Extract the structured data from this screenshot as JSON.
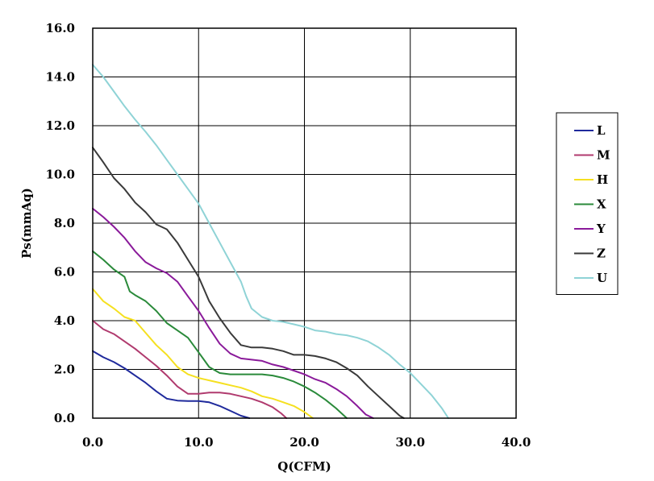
{
  "chart_data": {
    "type": "line",
    "xlabel": "Q(CFM)",
    "ylabel": "Ps(mmAq)",
    "xlim": [
      0,
      40
    ],
    "ylim": [
      0,
      16
    ],
    "x_ticks": [
      "0.0",
      "10.0",
      "20.0",
      "30.0",
      "40.0"
    ],
    "y_ticks": [
      "0.0",
      "2.0",
      "4.0",
      "6.0",
      "8.0",
      "10.0",
      "12.0",
      "14.0",
      "16.0"
    ],
    "grid": true,
    "legend_position": "right",
    "series": [
      {
        "name": "L",
        "color": "#1f2a9c",
        "x": [
          0,
          1,
          2,
          3,
          4,
          5,
          6,
          7,
          8,
          9,
          10,
          11,
          12,
          13,
          14,
          14.8
        ],
        "y": [
          2.75,
          2.5,
          2.3,
          2.05,
          1.75,
          1.45,
          1.1,
          0.8,
          0.72,
          0.7,
          0.7,
          0.65,
          0.5,
          0.3,
          0.1,
          0.0
        ]
      },
      {
        "name": "M",
        "color": "#b03a6e",
        "x": [
          0,
          1,
          2,
          3,
          4,
          5,
          6,
          7,
          8,
          9,
          10,
          11,
          12,
          13,
          14,
          15,
          16,
          17,
          17.8,
          18.3
        ],
        "y": [
          4.0,
          3.65,
          3.45,
          3.15,
          2.85,
          2.5,
          2.15,
          1.75,
          1.3,
          1.0,
          1.0,
          1.05,
          1.05,
          1.0,
          0.9,
          0.8,
          0.65,
          0.45,
          0.2,
          0.0
        ]
      },
      {
        "name": "H",
        "color": "#f5e020",
        "x": [
          0,
          1,
          2,
          3,
          4,
          5,
          6,
          7,
          8,
          9,
          10,
          11,
          12,
          13,
          14,
          15,
          16,
          17,
          18,
          19,
          20,
          20.8
        ],
        "y": [
          5.3,
          4.8,
          4.5,
          4.15,
          4.0,
          3.5,
          3.0,
          2.6,
          2.1,
          1.8,
          1.65,
          1.55,
          1.45,
          1.35,
          1.25,
          1.1,
          0.9,
          0.8,
          0.65,
          0.5,
          0.25,
          0.0
        ]
      },
      {
        "name": "X",
        "color": "#2a8a3a",
        "x": [
          0,
          1,
          2,
          3,
          3.5,
          4,
          5,
          6,
          7,
          8,
          9,
          10,
          11,
          12,
          13,
          14,
          15,
          16,
          17,
          18,
          19,
          20,
          21,
          22,
          23,
          24
        ],
        "y": [
          6.85,
          6.5,
          6.1,
          5.8,
          5.2,
          5.05,
          4.8,
          4.4,
          3.9,
          3.6,
          3.3,
          2.7,
          2.1,
          1.85,
          1.8,
          1.8,
          1.8,
          1.8,
          1.75,
          1.65,
          1.5,
          1.3,
          1.05,
          0.75,
          0.4,
          0.0
        ]
      },
      {
        "name": "Y",
        "color": "#8a1a9a",
        "x": [
          0,
          1,
          2,
          3,
          4,
          5,
          6,
          7,
          8,
          9,
          10,
          11,
          12,
          13,
          14,
          15,
          16,
          17,
          18,
          19,
          20,
          21,
          22,
          23,
          24,
          25,
          25.8,
          26.5
        ],
        "y": [
          8.6,
          8.25,
          7.85,
          7.4,
          6.85,
          6.4,
          6.15,
          5.95,
          5.6,
          5.0,
          4.4,
          3.7,
          3.05,
          2.65,
          2.45,
          2.4,
          2.35,
          2.2,
          2.1,
          1.95,
          1.8,
          1.6,
          1.45,
          1.2,
          0.9,
          0.5,
          0.15,
          0.0
        ]
      },
      {
        "name": "Z",
        "color": "#3a3a3a",
        "x": [
          0,
          1,
          2,
          3,
          4,
          5,
          6,
          7,
          8,
          9,
          10,
          11,
          12,
          13,
          14,
          15,
          16,
          17,
          18,
          19,
          20,
          21,
          22,
          23,
          24,
          25,
          26,
          27,
          28,
          29,
          29.4
        ],
        "y": [
          11.1,
          10.5,
          9.85,
          9.4,
          8.85,
          8.45,
          7.95,
          7.75,
          7.2,
          6.5,
          5.8,
          4.8,
          4.1,
          3.5,
          3.0,
          2.9,
          2.9,
          2.85,
          2.75,
          2.6,
          2.6,
          2.55,
          2.45,
          2.3,
          2.05,
          1.75,
          1.3,
          0.9,
          0.5,
          0.1,
          0.0
        ]
      },
      {
        "name": "U",
        "color": "#8fd3d6",
        "x": [
          0,
          1,
          2,
          3,
          4,
          5,
          6,
          7,
          8,
          9,
          10,
          11,
          12,
          13,
          14,
          14.5,
          15,
          16,
          17,
          18,
          19,
          20,
          21,
          22,
          23,
          24,
          25,
          26,
          27,
          28,
          29,
          30,
          31,
          32,
          33,
          33.6
        ],
        "y": [
          14.5,
          14.0,
          13.4,
          12.8,
          12.25,
          11.75,
          11.2,
          10.6,
          10.0,
          9.4,
          8.8,
          8.0,
          7.2,
          6.4,
          5.6,
          5.0,
          4.5,
          4.15,
          4.0,
          3.95,
          3.85,
          3.75,
          3.6,
          3.55,
          3.45,
          3.4,
          3.3,
          3.15,
          2.9,
          2.6,
          2.2,
          1.85,
          1.4,
          0.95,
          0.4,
          0.0
        ]
      }
    ]
  }
}
